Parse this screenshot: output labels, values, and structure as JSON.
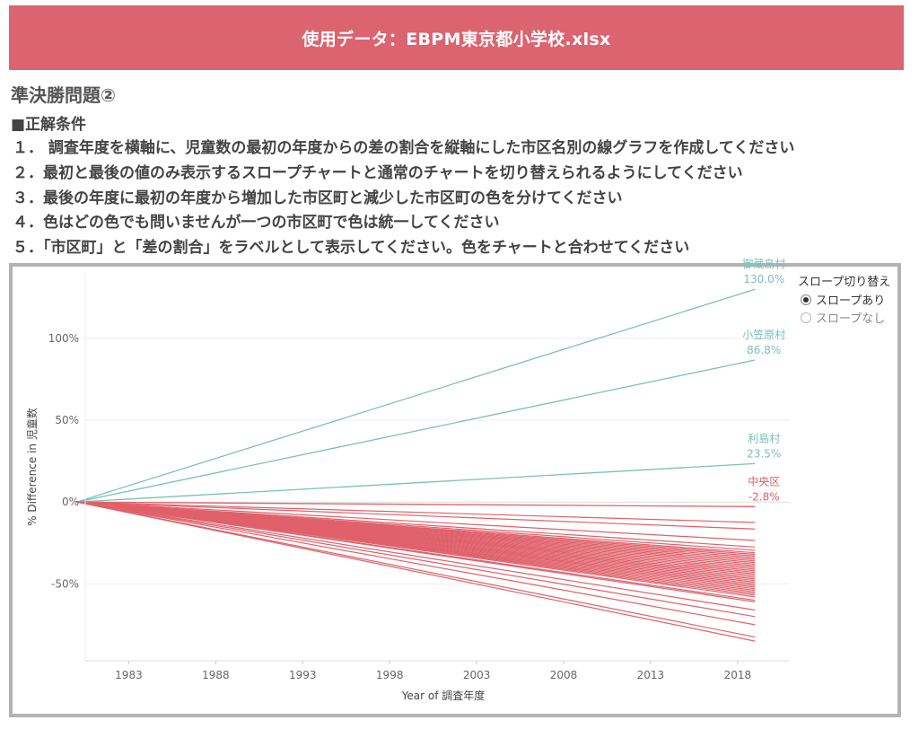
{
  "header": {
    "title": "使用データ：EBPM東京都小学校.xlsx"
  },
  "question": {
    "title": "準決勝問題②",
    "conditions_heading": "■正解条件",
    "conditions": [
      "１．  調査年度を横軸に、児童数の最初の年度からの差の割合を縦軸にした市区名別の線グラフを作成してください",
      "２．最初と最後の値のみ表示するスロープチャートと通常のチャートを切り替えられるようにしてください",
      "３．最後の年度に最初の年度から増加した市区町と減少した市区町の色を分けてください",
      "４．色はどの色でも問いませんが一つの市区町で色は統一してください",
      "５．「市区町」と「差の割合」をラベルとして表示してください。色をチャートと合わせてください"
    ]
  },
  "legend": {
    "title": "スロープ切り替え",
    "options": [
      {
        "label": "スロープあり",
        "selected": true
      },
      {
        "label": "スロープなし",
        "selected": false
      }
    ]
  },
  "chart_data": {
    "type": "line",
    "xlabel": "Year of 調査年度",
    "ylabel": "% Difference in 児童数",
    "x_ticks": [
      "1983",
      "1988",
      "1993",
      "1998",
      "2003",
      "2008",
      "2013",
      "2018"
    ],
    "xlim": [
      1980.5,
      2021
    ],
    "y_ticks": [
      "100%",
      "50%",
      "0%",
      "-50%"
    ],
    "y_tick_values": [
      100,
      50,
      0,
      -50
    ],
    "ylim": [
      -97,
      140
    ],
    "start_year": 1980,
    "end_year": 2019,
    "colors": {
      "increase": "#7ebfb6",
      "decrease": "#e0616b",
      "grid": "#eeeeee",
      "axis_text": "#666666"
    },
    "labeled_series": [
      {
        "name": "御蔵島村",
        "value_label": "130.0%",
        "end_value": 130.0,
        "direction": "increase"
      },
      {
        "name": "小笠原村",
        "value_label": "86.8%",
        "end_value": 86.8,
        "direction": "increase"
      },
      {
        "name": "利島村",
        "value_label": "23.5%",
        "end_value": 23.5,
        "direction": "increase"
      },
      {
        "name": "中央区",
        "value_label": "-2.8%",
        "end_value": -2.8,
        "direction": "decrease"
      }
    ],
    "other_series_end_values": [
      -12.5,
      -16.5,
      -23.5,
      -27.5,
      -29.5,
      -31,
      -32,
      -33,
      -34,
      -35,
      -36,
      -37,
      -38,
      -39,
      -40,
      -41,
      -42,
      -43,
      -44,
      -45,
      -46,
      -47,
      -48,
      -49,
      -50,
      -51,
      -52,
      -53,
      -54,
      -55,
      -56,
      -57,
      -58,
      -60,
      -61,
      -66,
      -70,
      -75,
      -82.5,
      -85
    ]
  }
}
